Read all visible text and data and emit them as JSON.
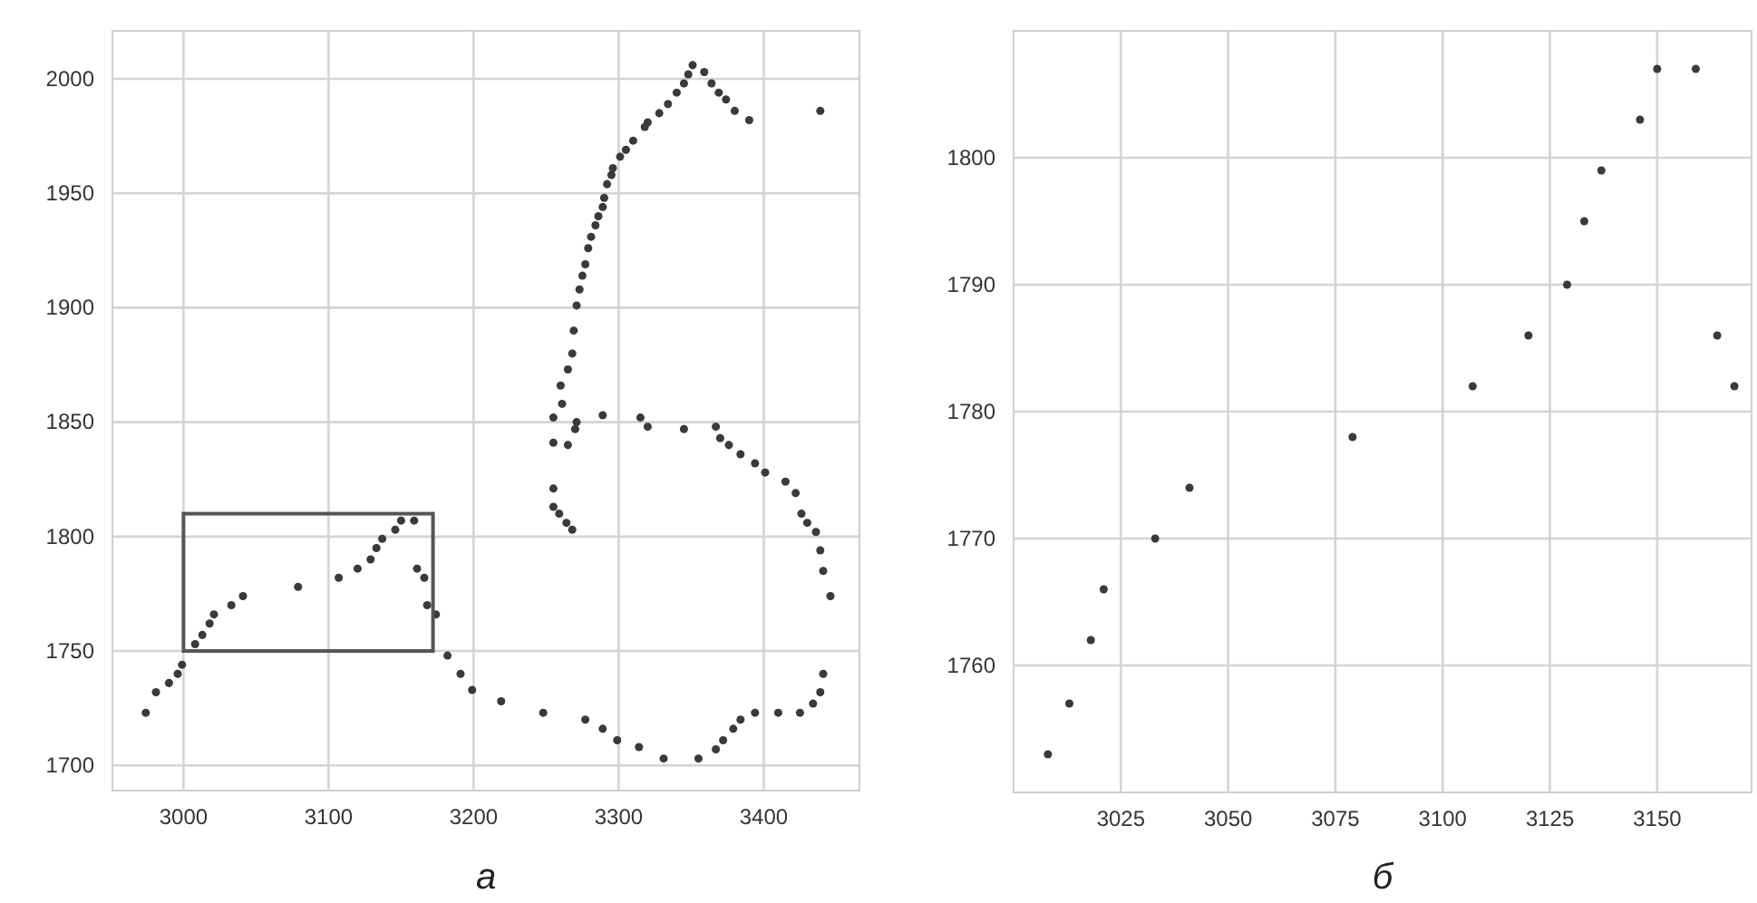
{
  "chart_data": [
    {
      "type": "scatter",
      "annotations": [
        "а"
      ],
      "marker": "circle",
      "grid": true,
      "xlim": [
        2951,
        3466
      ],
      "ylim": [
        1689,
        2021
      ],
      "xticks": [
        3000,
        3100,
        3200,
        3300,
        3400
      ],
      "yticks": [
        1700,
        1750,
        1800,
        1850,
        1900,
        1950,
        2000
      ],
      "series": [
        {
          "color": "#3a3a3a",
          "x": [
            2974,
            2981,
            2990,
            2996,
            2999,
            3008,
            3013,
            3018,
            3021,
            3033,
            3041,
            3079,
            3107,
            3120,
            3129,
            3133,
            3137,
            3146,
            3150,
            3159,
            3161,
            3166,
            3168,
            3174,
            3182,
            3191,
            3199,
            3219,
            3248,
            3277,
            3289,
            3299,
            3314,
            3331,
            3355,
            3367,
            3372,
            3379,
            3384,
            3394,
            3410,
            3425,
            3434,
            3439,
            3441,
            3446,
            3441,
            3439,
            3436,
            3430,
            3426,
            3422,
            3415,
            3401,
            3394,
            3384,
            3376,
            3370,
            3367,
            3345,
            3320,
            3315,
            3289,
            3271,
            3270,
            3255,
            3265,
            3255,
            3255,
            3259,
            3264,
            3268,
            3255,
            3261,
            3260,
            3265,
            3268,
            3269,
            3271,
            3273,
            3275,
            3277,
            3279,
            3281,
            3284,
            3286,
            3289,
            3290,
            3292,
            3295,
            3296,
            3301,
            3305,
            3310,
            3318,
            3320,
            3328,
            3334,
            3340,
            3345,
            3348,
            3351,
            3359,
            3364,
            3369,
            3374,
            3380,
            3390,
            3439
          ],
          "values": [
            1723,
            1732,
            1736,
            1740,
            1744,
            1753,
            1757,
            1762,
            1766,
            1770,
            1774,
            1778,
            1782,
            1786,
            1790,
            1795,
            1799,
            1803,
            1807,
            1807,
            1786,
            1782,
            1770,
            1766,
            1748,
            1740,
            1733,
            1728,
            1723,
            1720,
            1716,
            1711,
            1708,
            1703,
            1703,
            1707,
            1711,
            1716,
            1720,
            1723,
            1723,
            1723,
            1727,
            1732,
            1740,
            1774,
            1785,
            1794,
            1802,
            1806,
            1810,
            1819,
            1824,
            1828,
            1832,
            1836,
            1840,
            1843,
            1848,
            1847,
            1848,
            1852,
            1853,
            1850,
            1847,
            1841,
            1840,
            1821,
            1813,
            1810,
            1806,
            1803,
            1852,
            1858,
            1866,
            1873,
            1880,
            1890,
            1901,
            1908,
            1914,
            1919,
            1926,
            1931,
            1936,
            1940,
            1944,
            1948,
            1954,
            1958,
            1961,
            1966,
            1969,
            1973,
            1979,
            1981,
            1985,
            1989,
            1994,
            1998,
            2002,
            2006,
            2003,
            1998,
            1994,
            1991,
            1986,
            1982,
            1986
          ]
        }
      ]
    },
    {
      "type": "scatter",
      "annotations": [
        "б"
      ],
      "marker": "circle",
      "grid": true,
      "xlim": [
        3000,
        3172
      ],
      "ylim": [
        1750,
        1810
      ],
      "xticks": [
        3025,
        3050,
        3075,
        3100,
        3125,
        3150
      ],
      "yticks": [
        1760,
        1770,
        1780,
        1790,
        1800
      ],
      "series": [
        {
          "color": "#3a3a3a",
          "x": [
            3008,
            3013,
            3018,
            3021,
            3033,
            3041,
            3079,
            3107,
            3120,
            3129,
            3133,
            3137,
            3146,
            3150,
            3159,
            3164,
            3168
          ],
          "values": [
            1753,
            1757,
            1762,
            1766,
            1770,
            1774,
            1778,
            1782,
            1786,
            1790,
            1795,
            1799,
            1803,
            1807,
            1807,
            1786,
            1782
          ]
        }
      ]
    }
  ]
}
